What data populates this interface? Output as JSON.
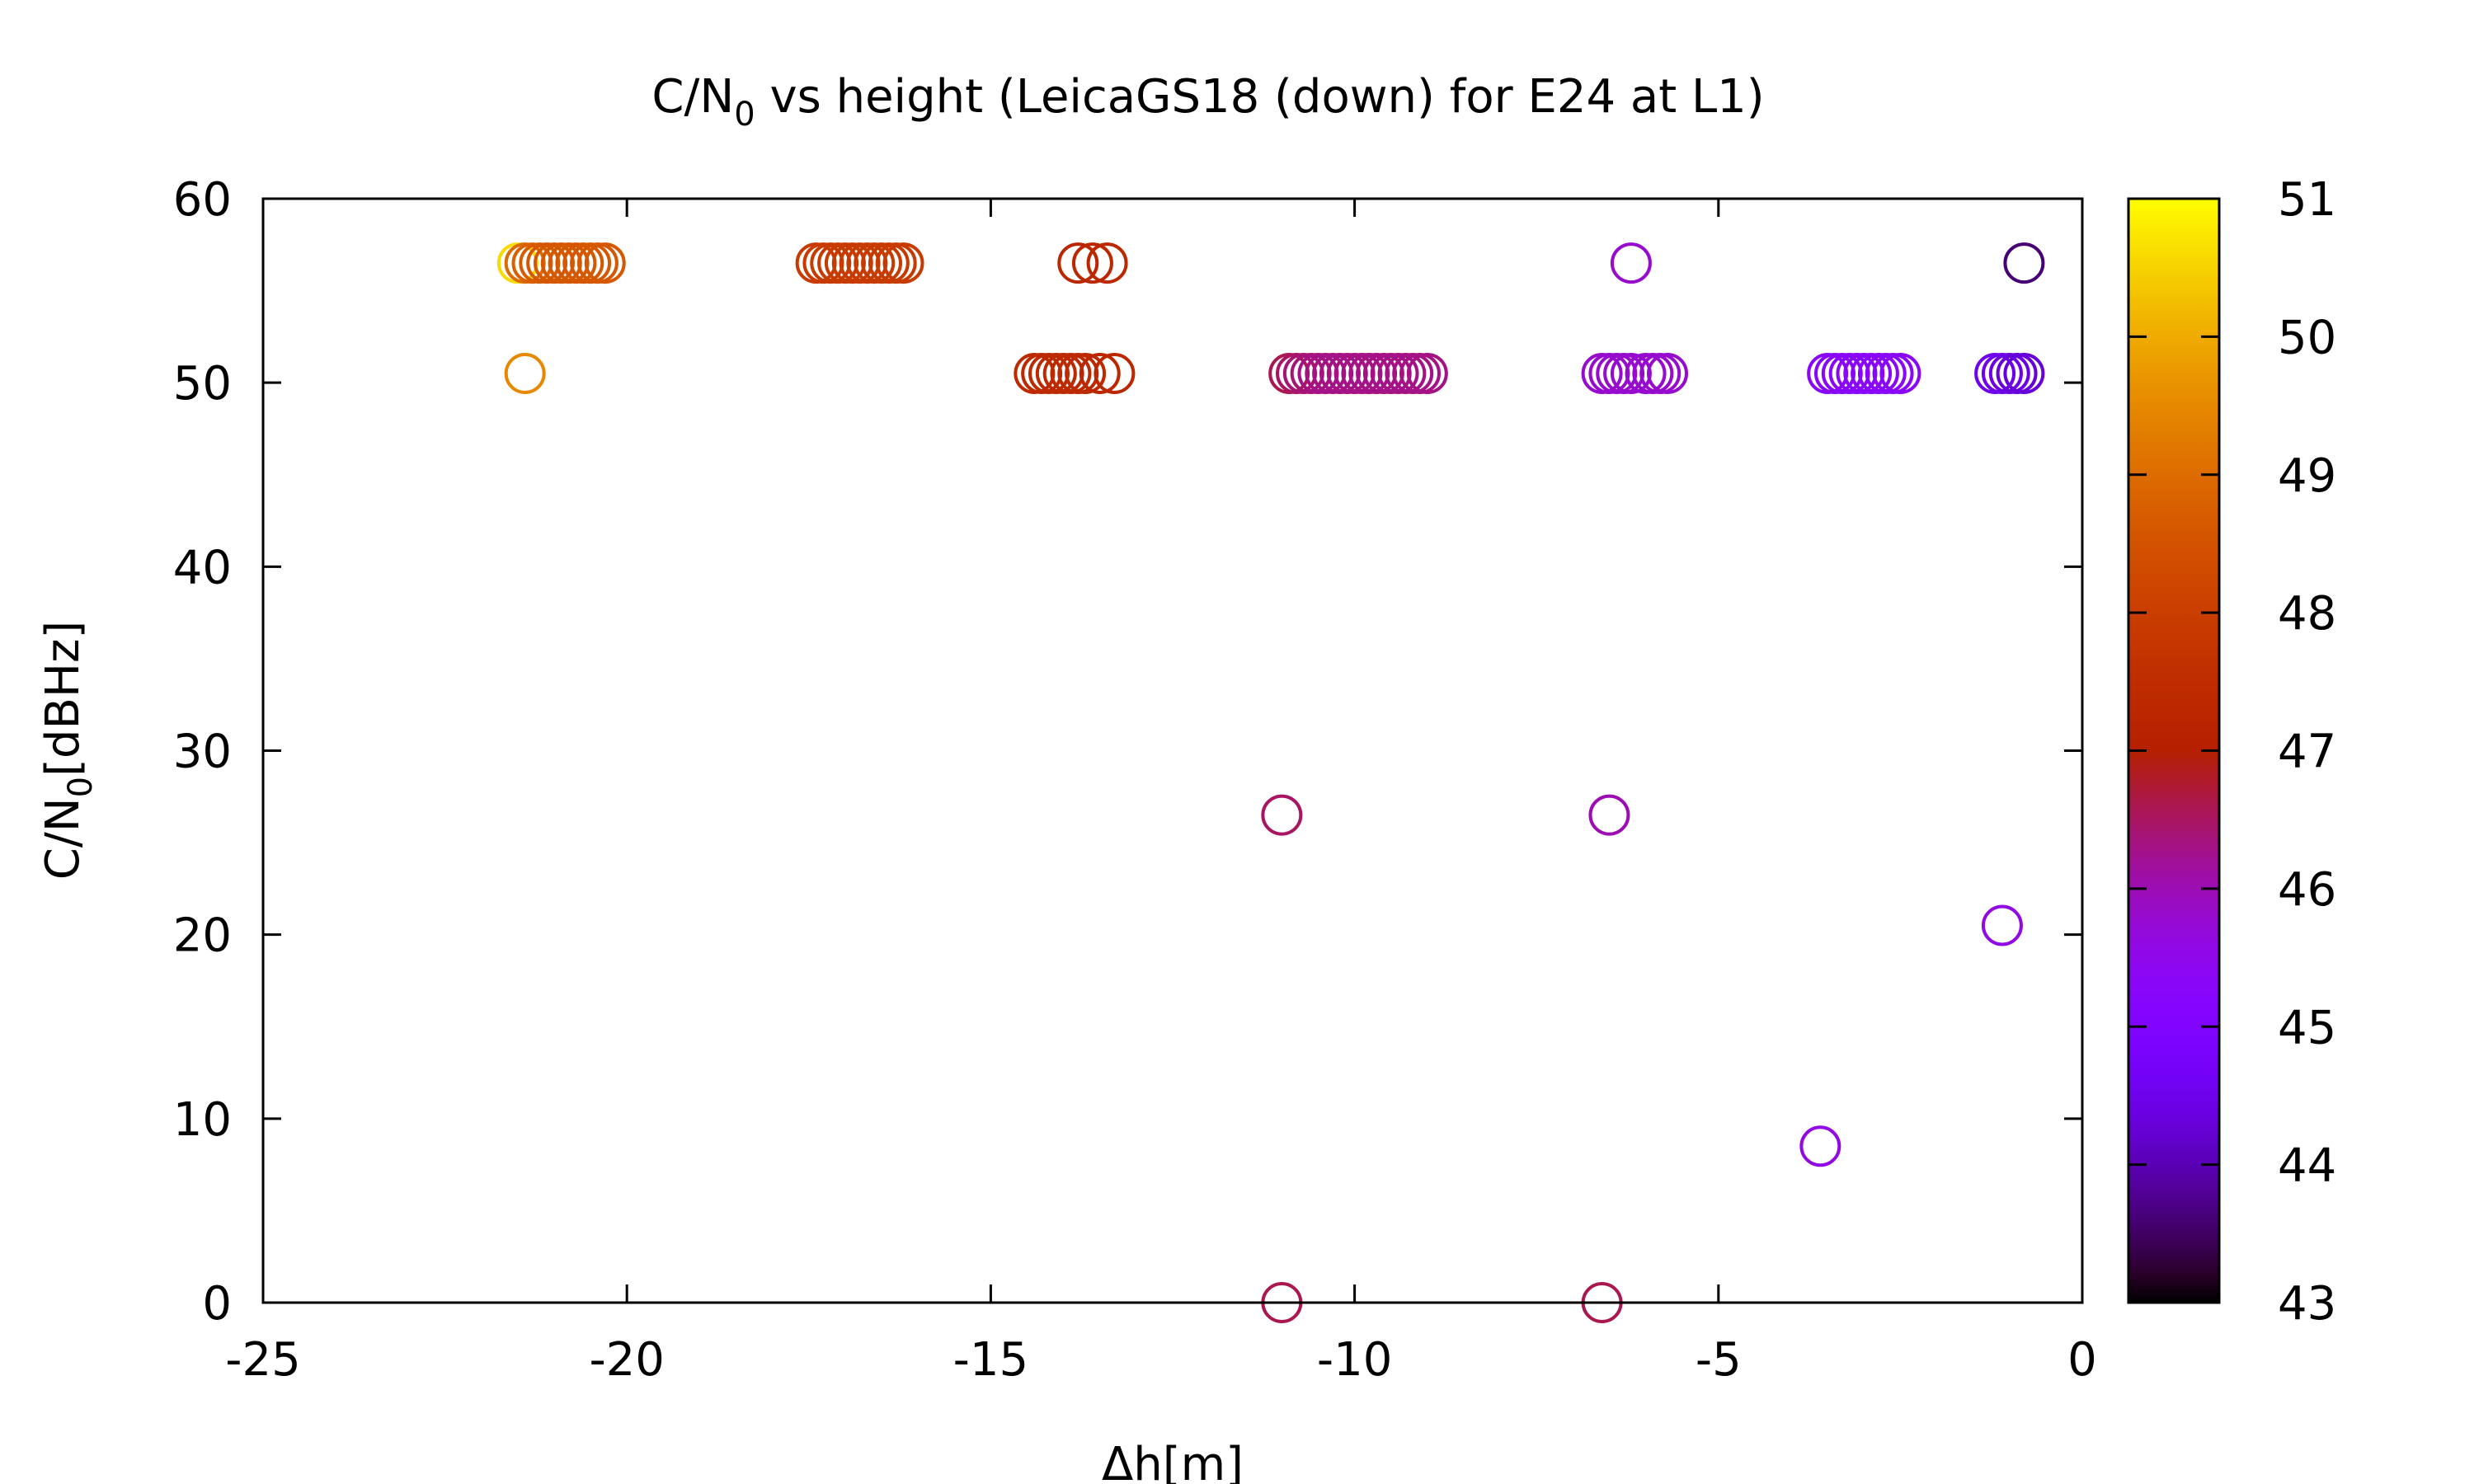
{
  "chart_data": {
    "type": "scatter",
    "title": {
      "main": "C/N",
      "sub": "0",
      "rest": " vs height (LeicaGS18 (down) for E24 at L1)"
    },
    "xlabel": "Δh[m]",
    "ylabel": {
      "main": "C/N",
      "sub": "0",
      "rest": "[dBHz]"
    },
    "xlim": [
      -25,
      0
    ],
    "ylim": [
      0,
      60
    ],
    "x_ticks": [
      -25,
      -20,
      -15,
      -10,
      -5,
      0
    ],
    "y_ticks": [
      0,
      10,
      20,
      30,
      40,
      50,
      60
    ],
    "colorbar": {
      "range": [
        43,
        51
      ],
      "ticks": [
        43,
        44,
        45,
        46,
        47,
        48,
        49,
        50,
        51
      ],
      "palette": "gnuplot rgbformulae 7,5,15"
    },
    "grid": false,
    "legend": "none",
    "point_style": "open circle",
    "points": [
      {
        "x": -21.5,
        "y": 56.5,
        "c": 50.6
      },
      {
        "x": -21.4,
        "y": 56.5,
        "c": 49.0
      },
      {
        "x": -21.3,
        "y": 56.5,
        "c": 48.8
      },
      {
        "x": -21.2,
        "y": 56.5,
        "c": 48.7
      },
      {
        "x": -21.1,
        "y": 56.5,
        "c": 48.6
      },
      {
        "x": -21.0,
        "y": 56.5,
        "c": 48.6
      },
      {
        "x": -20.9,
        "y": 56.5,
        "c": 48.6
      },
      {
        "x": -20.8,
        "y": 56.5,
        "c": 48.6
      },
      {
        "x": -20.7,
        "y": 56.5,
        "c": 48.6
      },
      {
        "x": -20.6,
        "y": 56.5,
        "c": 48.6
      },
      {
        "x": -20.5,
        "y": 56.5,
        "c": 48.6
      },
      {
        "x": -20.4,
        "y": 56.5,
        "c": 48.6
      },
      {
        "x": -20.3,
        "y": 56.5,
        "c": 48.6
      },
      {
        "x": -21.4,
        "y": 50.5,
        "c": 49.5
      },
      {
        "x": -17.4,
        "y": 56.5,
        "c": 47.9
      },
      {
        "x": -17.3,
        "y": 56.5,
        "c": 47.9
      },
      {
        "x": -17.2,
        "y": 56.5,
        "c": 47.9
      },
      {
        "x": -17.1,
        "y": 56.5,
        "c": 47.9
      },
      {
        "x": -17.0,
        "y": 56.5,
        "c": 47.9
      },
      {
        "x": -16.9,
        "y": 56.5,
        "c": 47.9
      },
      {
        "x": -16.8,
        "y": 56.5,
        "c": 47.9
      },
      {
        "x": -16.7,
        "y": 56.5,
        "c": 47.9
      },
      {
        "x": -16.6,
        "y": 56.5,
        "c": 47.9
      },
      {
        "x": -16.5,
        "y": 56.5,
        "c": 47.9
      },
      {
        "x": -16.4,
        "y": 56.5,
        "c": 47.9
      },
      {
        "x": -16.3,
        "y": 56.5,
        "c": 47.9
      },
      {
        "x": -16.2,
        "y": 56.5,
        "c": 47.9
      },
      {
        "x": -13.8,
        "y": 56.5,
        "c": 47.3
      },
      {
        "x": -13.6,
        "y": 56.5,
        "c": 47.3
      },
      {
        "x": -13.4,
        "y": 56.5,
        "c": 47.3
      },
      {
        "x": -14.4,
        "y": 50.5,
        "c": 47.4
      },
      {
        "x": -14.3,
        "y": 50.5,
        "c": 47.4
      },
      {
        "x": -14.2,
        "y": 50.5,
        "c": 47.4
      },
      {
        "x": -14.1,
        "y": 50.5,
        "c": 47.4
      },
      {
        "x": -14.0,
        "y": 50.5,
        "c": 47.4
      },
      {
        "x": -13.9,
        "y": 50.5,
        "c": 47.4
      },
      {
        "x": -13.8,
        "y": 50.5,
        "c": 47.4
      },
      {
        "x": -13.7,
        "y": 50.5,
        "c": 47.4
      },
      {
        "x": -13.5,
        "y": 50.5,
        "c": 47.3
      },
      {
        "x": -13.3,
        "y": 50.5,
        "c": 47.3
      },
      {
        "x": -10.9,
        "y": 50.5,
        "c": 46.6
      },
      {
        "x": -10.8,
        "y": 50.5,
        "c": 46.5
      },
      {
        "x": -10.7,
        "y": 50.5,
        "c": 46.4
      },
      {
        "x": -10.6,
        "y": 50.5,
        "c": 46.4
      },
      {
        "x": -10.5,
        "y": 50.5,
        "c": 46.3
      },
      {
        "x": -10.4,
        "y": 50.5,
        "c": 46.3
      },
      {
        "x": -10.3,
        "y": 50.5,
        "c": 46.3
      },
      {
        "x": -10.2,
        "y": 50.5,
        "c": 46.3
      },
      {
        "x": -10.1,
        "y": 50.5,
        "c": 46.3
      },
      {
        "x": -10.0,
        "y": 50.5,
        "c": 46.3
      },
      {
        "x": -9.9,
        "y": 50.5,
        "c": 46.3
      },
      {
        "x": -9.8,
        "y": 50.5,
        "c": 46.3
      },
      {
        "x": -9.7,
        "y": 50.5,
        "c": 46.3
      },
      {
        "x": -9.6,
        "y": 50.5,
        "c": 46.3
      },
      {
        "x": -9.5,
        "y": 50.5,
        "c": 46.3
      },
      {
        "x": -9.4,
        "y": 50.5,
        "c": 46.3
      },
      {
        "x": -9.3,
        "y": 50.5,
        "c": 46.3
      },
      {
        "x": -9.2,
        "y": 50.5,
        "c": 46.3
      },
      {
        "x": -9.1,
        "y": 50.5,
        "c": 46.3
      },
      {
        "x": -9.0,
        "y": 50.5,
        "c": 46.3
      },
      {
        "x": -6.2,
        "y": 56.5,
        "c": 45.8
      },
      {
        "x": -6.6,
        "y": 50.5,
        "c": 45.8
      },
      {
        "x": -6.5,
        "y": 50.5,
        "c": 45.8
      },
      {
        "x": -6.4,
        "y": 50.5,
        "c": 45.8
      },
      {
        "x": -6.3,
        "y": 50.5,
        "c": 45.8
      },
      {
        "x": -6.2,
        "y": 50.5,
        "c": 45.8
      },
      {
        "x": -6.0,
        "y": 50.5,
        "c": 45.8
      },
      {
        "x": -5.9,
        "y": 50.5,
        "c": 45.8
      },
      {
        "x": -5.8,
        "y": 50.5,
        "c": 45.8
      },
      {
        "x": -5.7,
        "y": 50.5,
        "c": 45.8
      },
      {
        "x": -3.5,
        "y": 50.5,
        "c": 45.3
      },
      {
        "x": -3.4,
        "y": 50.5,
        "c": 45.3
      },
      {
        "x": -3.3,
        "y": 50.5,
        "c": 45.3
      },
      {
        "x": -3.2,
        "y": 50.5,
        "c": 45.3
      },
      {
        "x": -3.1,
        "y": 50.5,
        "c": 45.3
      },
      {
        "x": -3.0,
        "y": 50.5,
        "c": 45.3
      },
      {
        "x": -2.9,
        "y": 50.5,
        "c": 45.3
      },
      {
        "x": -2.8,
        "y": 50.5,
        "c": 45.3
      },
      {
        "x": -2.7,
        "y": 50.5,
        "c": 45.3
      },
      {
        "x": -2.6,
        "y": 50.5,
        "c": 45.3
      },
      {
        "x": -2.5,
        "y": 50.5,
        "c": 45.3
      },
      {
        "x": -1.2,
        "y": 50.5,
        "c": 44.5
      },
      {
        "x": -1.1,
        "y": 50.5,
        "c": 44.5
      },
      {
        "x": -1.0,
        "y": 50.5,
        "c": 44.4
      },
      {
        "x": -0.9,
        "y": 50.5,
        "c": 44.3
      },
      {
        "x": -0.8,
        "y": 50.5,
        "c": 44.3
      },
      {
        "x": -0.8,
        "y": 56.5,
        "c": 43.6
      },
      {
        "x": -11.0,
        "y": 26.5,
        "c": 46.5
      },
      {
        "x": -6.5,
        "y": 26.5,
        "c": 46.0
      },
      {
        "x": -1.1,
        "y": 20.5,
        "c": 45.6
      },
      {
        "x": -3.6,
        "y": 8.5,
        "c": 45.6
      },
      {
        "x": -11.0,
        "y": 0,
        "c": 46.6
      },
      {
        "x": -6.6,
        "y": 0,
        "c": 46.6
      }
    ]
  }
}
